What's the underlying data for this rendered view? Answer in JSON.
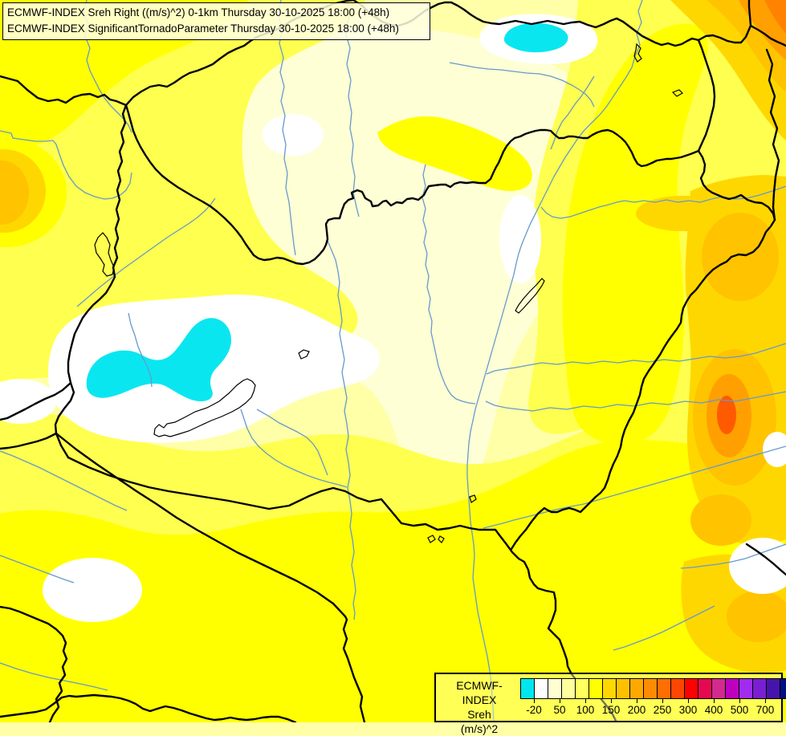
{
  "title": {
    "line1": "ECMWF-INDEX Sreh Right ((m/s)^2) 0-1km Thursday 30-10-2025 18:00 (+48h)",
    "line2": "ECMWF-INDEX SignificantTornadoParameter Thursday 30-10-2025 18:00 (+48h)"
  },
  "legend": {
    "title": "ECMWF-INDEX",
    "subtitle": "Sreh",
    "units": "(m/s)^2",
    "cell_colors": [
      "#00E6EE",
      "#FFFFFF",
      "#FFFFD2",
      "#FFFF9E",
      "#FFFF60",
      "#FFFF00",
      "#FFD700",
      "#FFC000",
      "#FFA800",
      "#FF8C00",
      "#FF6E00",
      "#FF4600",
      "#FF0000",
      "#E60850",
      "#D22A8E",
      "#BE00BE",
      "#A02CF0",
      "#7A1ED2",
      "#4614AC",
      "#001080"
    ],
    "ticks": [
      {
        "label": "-20",
        "boundary": 1
      },
      {
        "label": "50",
        "boundary": 3
      },
      {
        "label": "100",
        "boundary": 5
      },
      {
        "label": "150",
        "boundary": 7
      },
      {
        "label": "200",
        "boundary": 9
      },
      {
        "label": "250",
        "boundary": 11
      },
      {
        "label": "300",
        "boundary": 13
      },
      {
        "label": "400",
        "boundary": 15
      },
      {
        "label": "500",
        "boundary": 17
      },
      {
        "label": "700",
        "boundary": 19
      }
    ]
  },
  "map": {
    "palette": {
      "base": "#FFFFA8",
      "cream": "#FFFFD6",
      "yellow": "#FFFF4F",
      "bright_yellow": "#FFFF00",
      "gold": "#FFD700",
      "amber": "#FFC300",
      "orange": "#FFA000",
      "dark_orange": "#FF8200",
      "red_orange": "#FF5A00",
      "white": "#FFFFFF",
      "cyan": "#0AE6F0",
      "border": "#000000",
      "river": "#6699CC"
    }
  }
}
